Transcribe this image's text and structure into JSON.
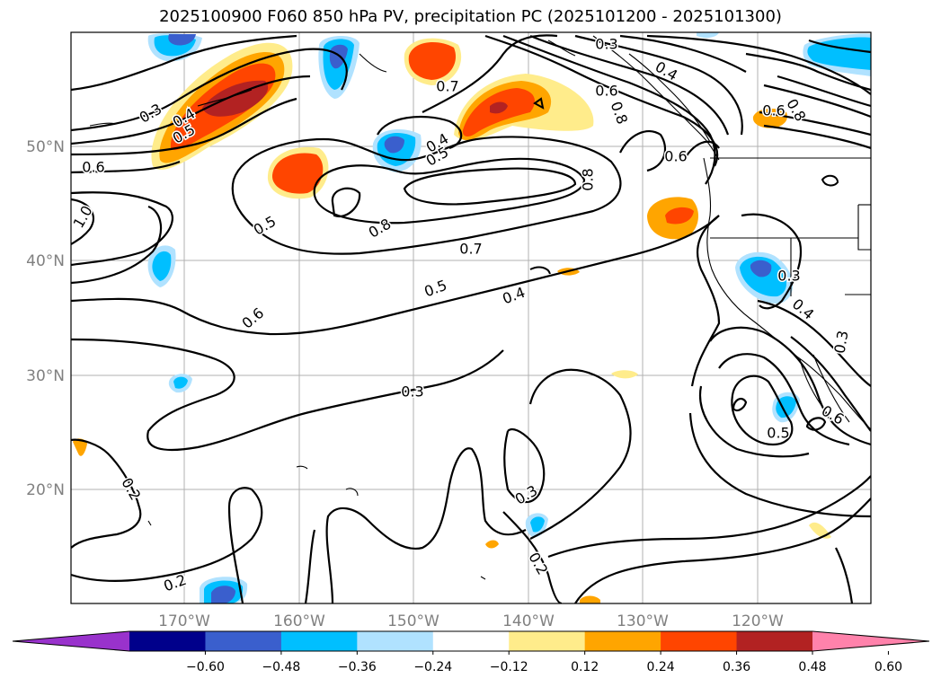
{
  "title": "2025100900 F060 850 hPa PV, precipitation PC (2025101200 - 2025101300)",
  "map": {
    "lat_labels": [
      "50°N",
      "40°N",
      "30°N",
      "20°N"
    ],
    "lon_labels": [
      "170°W",
      "160°W",
      "150°W",
      "140°W",
      "130°W",
      "120°W"
    ],
    "contour_labels": [
      "0.3",
      "0.4",
      "0.5",
      "0.6",
      "0.7",
      "1.0",
      "0.5",
      "0.6",
      "0.8",
      "0.4",
      "0.5",
      "0.8",
      "0.7",
      "0.5",
      "0.4",
      "0.6",
      "0.3",
      "0.2",
      "0.2",
      "0.3",
      "0.2",
      "0.8",
      "0.3",
      "0.4",
      "0.6",
      "0.8",
      "0.6",
      "0.3",
      "0.4",
      "0.3",
      "0.6",
      "0.5"
    ]
  },
  "colorbar": {
    "colors": [
      "#9932cc",
      "#00008b",
      "#3a5fcd",
      "#00bfff",
      "#b0e2ff",
      "#ffffff",
      "#ffec8b",
      "#ffa500",
      "#ff4500",
      "#b22222",
      "#ff82ab"
    ],
    "tick_labels": [
      "−0.60",
      "−0.48",
      "−0.36",
      "−0.24",
      "−0.12",
      "0.12",
      "0.24",
      "0.36",
      "0.48",
      "0.60"
    ]
  }
}
